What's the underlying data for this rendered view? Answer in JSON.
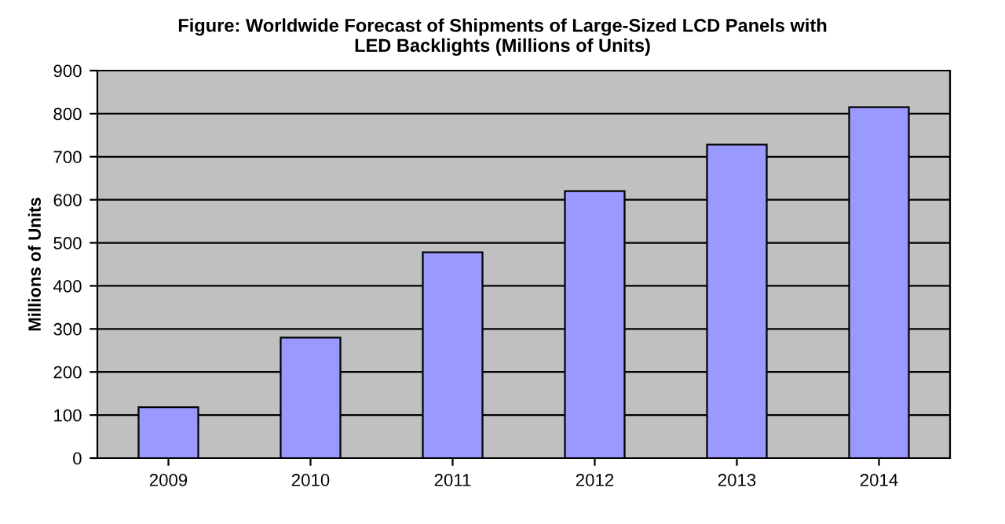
{
  "chart_data": {
    "type": "bar",
    "title": "Figure: Worldwide Forecast of Shipments of Large-Sized LCD Panels with\nLED Backlights (Millions of Units)",
    "ylabel": "Millions of Units",
    "categories": [
      "2009",
      "2010",
      "2011",
      "2012",
      "2013",
      "2014"
    ],
    "values": [
      118,
      280,
      478,
      620,
      728,
      815
    ],
    "color": "#9999ff",
    "ylim": [
      0,
      900
    ],
    "yticks": [
      0,
      100,
      200,
      300,
      400,
      500,
      600,
      700,
      800,
      900
    ],
    "grid": "y"
  }
}
